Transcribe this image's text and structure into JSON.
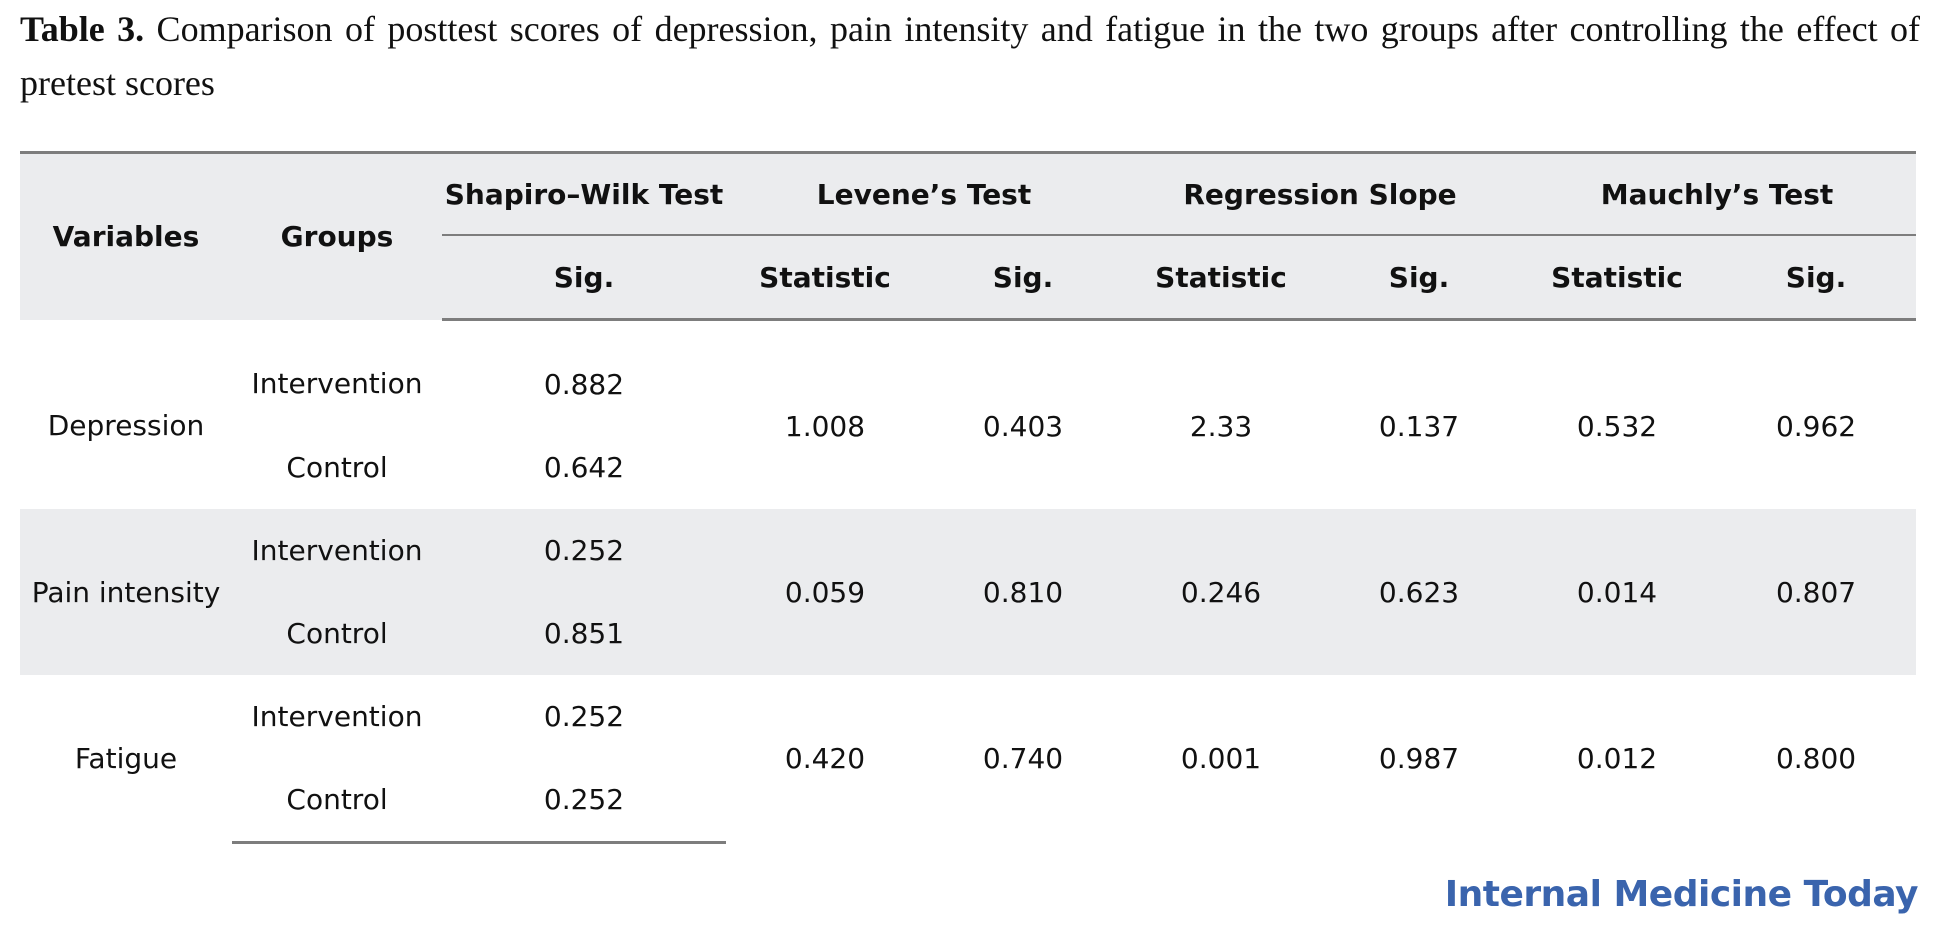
{
  "caption": {
    "label": "Table 3.",
    "text": " Comparison of posttest scores of depression, pain intensity and fatigue in the two groups after controlling the effect of pretest scores"
  },
  "table": {
    "head": {
      "variables": "Variables",
      "groups": "Groups",
      "shapiro": "Shapiro–Wilk Test",
      "levene": "Levene’s Test",
      "regression": "Regression Slope",
      "mauchly": "Mauchly’s Test",
      "sub": [
        "Sig.",
        "Statistic",
        "Sig.",
        "Statistic",
        "Sig.",
        "Statistic",
        "Sig."
      ]
    },
    "rows": [
      {
        "variable": "Depression",
        "groups": [
          "Intervention",
          "Control"
        ],
        "shapiro_sig": [
          "0.882",
          "0.642"
        ],
        "levene_stat": "1.008",
        "levene_sig": "0.403",
        "reg_stat": "2.33",
        "reg_sig": "0.137",
        "mauchly_stat": "0.532",
        "mauchly_sig": "0.962"
      },
      {
        "variable": "Pain intensity",
        "groups": [
          "Intervention",
          "Control"
        ],
        "shapiro_sig": [
          "0.252",
          "0.851"
        ],
        "levene_stat": "0.059",
        "levene_sig": "0.810",
        "reg_stat": "0.246",
        "reg_sig": "0.623",
        "mauchly_stat": "0.014",
        "mauchly_sig": "0.807"
      },
      {
        "variable": "Fatigue",
        "groups": [
          "Intervention",
          "Control"
        ],
        "shapiro_sig": [
          "0.252",
          "0.252"
        ],
        "levene_stat": "0.420",
        "levene_sig": "0.740",
        "reg_stat": "0.001",
        "reg_sig": "0.987",
        "mauchly_stat": "0.012",
        "mauchly_sig": "0.800"
      }
    ]
  },
  "journal": "Internal Medicine Today",
  "colors": {
    "band": "#ebecee",
    "rule": "#7d7d7d",
    "logo": "#3a64ad"
  }
}
